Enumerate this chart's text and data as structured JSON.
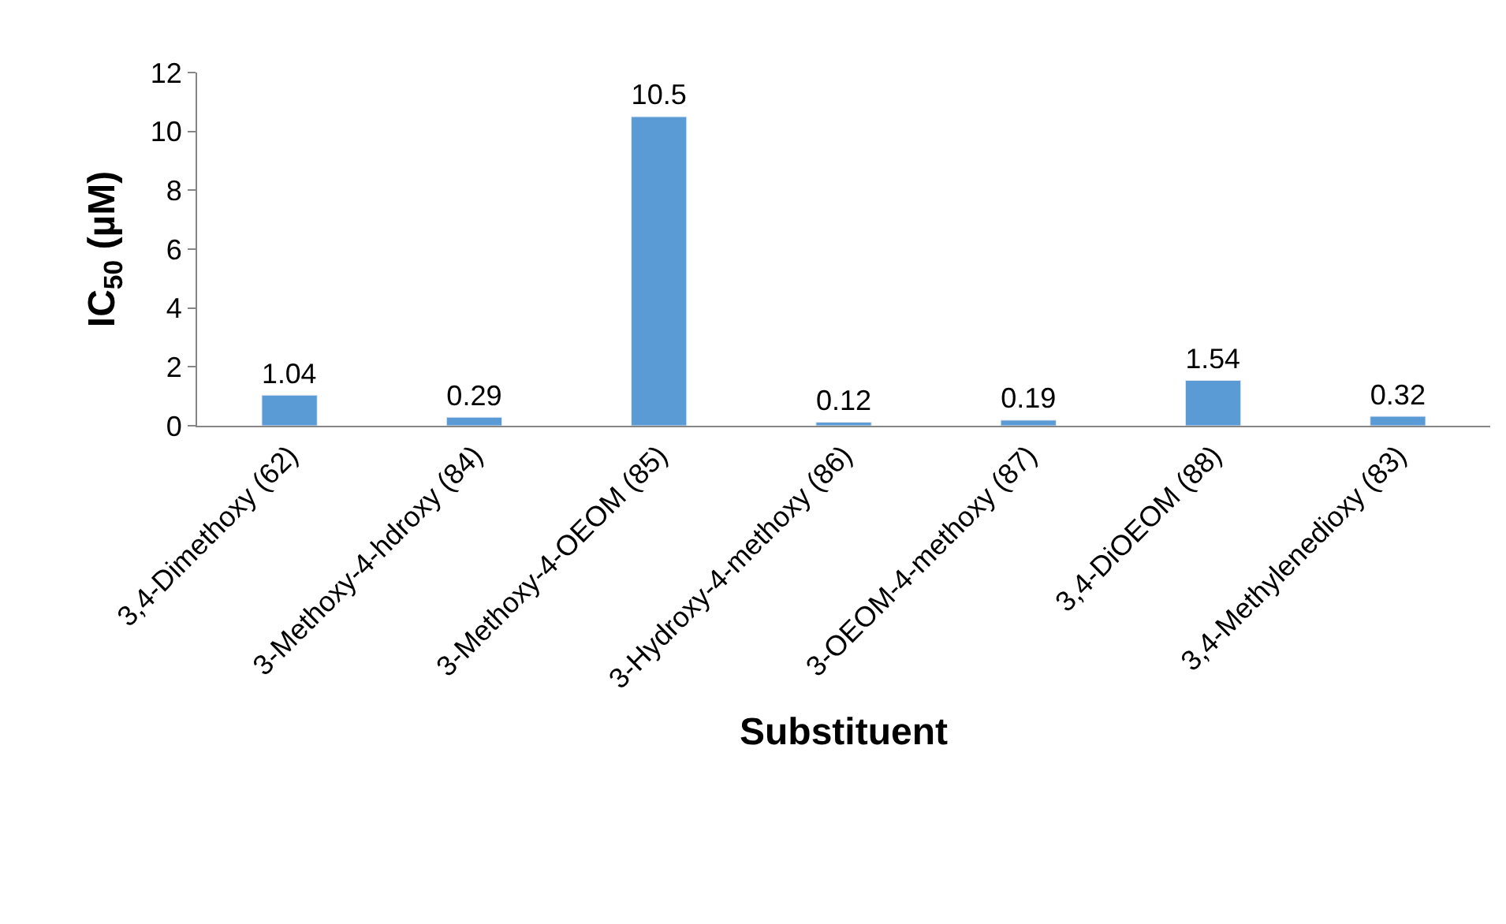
{
  "chart_data": {
    "type": "bar",
    "xlabel": "Substituent",
    "ylabel": "IC$_{50}$ (µM)",
    "categories": [
      "3,4-Dimethoxy (62)",
      "3-Methoxy-4-hdroxy (84)",
      "3-Methoxy-4-OEOM (85)",
      "3-Hydroxy-4-methoxy (86)",
      "3-OEOM-4-methoxy (87)",
      "3,4-DiOEOM (88)",
      "3,4-Methylenedioxy (83)"
    ],
    "values": [
      1.04,
      0.29,
      10.5,
      0.12,
      0.19,
      1.54,
      0.32
    ],
    "color": "#5b9bd5",
    "ylim": [
      0,
      12
    ],
    "yticks": [
      0,
      2,
      4,
      6,
      8,
      10,
      12
    ],
    "data_labels": true
  }
}
